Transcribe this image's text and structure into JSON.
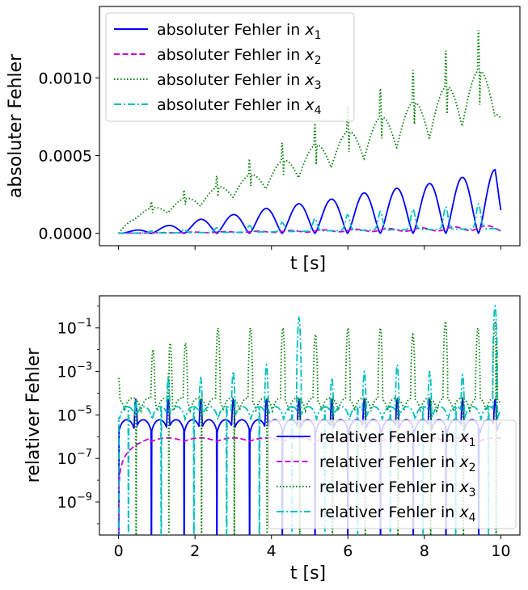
{
  "chart_data": [
    {
      "type": "line",
      "title": "",
      "xlabel": "t [s]",
      "ylabel": "absoluter Fehler",
      "xlim": [
        -0.5,
        10.5
      ],
      "ylim": [
        -8e-05,
        0.00146
      ],
      "yscale": "linear",
      "xtick_values": [
        0,
        2,
        4,
        6,
        8,
        10
      ],
      "show_xtick_labels": false,
      "yticks": [
        {
          "value": 0.0,
          "label": "0.0000"
        },
        {
          "value": 0.0005,
          "label": "0.0005"
        },
        {
          "value": 0.001,
          "label": "0.0010"
        }
      ],
      "grid": false,
      "legend_position": "upper-left",
      "series": [
        {
          "name": "absoluter Fehler in x1",
          "label_base": "absoluter Fehler in ",
          "sub": "1",
          "color": "#0000ff",
          "dash": "solid",
          "peaks_t": [
            0.0,
            0.45,
            1.32,
            2.15,
            3.0,
            3.87,
            4.72,
            5.58,
            6.43,
            7.29,
            8.14,
            9.0,
            9.85,
            10.0
          ],
          "peaks_v": [
            0.0,
            2e-05,
            5e-05,
            9e-05,
            0.00012,
            0.00016,
            0.00019,
            0.00022,
            0.00026,
            0.00029,
            0.00032,
            0.00036,
            0.00041,
            0.00019
          ]
        },
        {
          "name": "absoluter Fehler in x2",
          "label_base": "absoluter Fehler in ",
          "sub": "2",
          "color": "#cc00cc",
          "dash": "dashed",
          "peaks_t": [
            0.0,
            2.0,
            4.0,
            6.0,
            8.0,
            9.85,
            10.0
          ],
          "peaks_v": [
            0.0,
            8e-06,
            1.5e-05,
            2.5e-05,
            3.5e-05,
            5e-05,
            4e-05
          ]
        },
        {
          "name": "absoluter Fehler in x3",
          "label_base": "absoluter Fehler in ",
          "sub": "3",
          "color": "#008000",
          "dash": "dotted",
          "peaks_t": [
            0.0,
            0.45,
            1.3,
            2.15,
            3.0,
            3.87,
            4.72,
            5.58,
            6.43,
            7.29,
            8.14,
            9.0,
            9.85,
            10.0
          ],
          "peaks_v": [
            0.0,
            0.00017,
            0.00024,
            0.00032,
            0.00042,
            0.00052,
            0.00065,
            0.00077,
            0.00087,
            0.001,
            0.00111,
            0.00125,
            0.00137,
            0.00107
          ]
        },
        {
          "name": "absoluter Fehler in x4",
          "label_base": "absoluter Fehler in ",
          "sub": "4",
          "color": "#00bfbf",
          "dash": "dashdot",
          "peaks_t": [
            0.0,
            0.45,
            1.3,
            2.15,
            3.0,
            3.87,
            4.72,
            5.58,
            6.43,
            7.29,
            8.14,
            9.0,
            9.85,
            10.0
          ],
          "peaks_v": [
            0.0,
            1e-05,
            2e-05,
            3e-05,
            4e-05,
            6e-05,
            8e-05,
            0.00011,
            0.00013,
            0.00015,
            0.00016,
            0.00018,
            0.0002,
            8e-05
          ]
        }
      ]
    },
    {
      "type": "line",
      "title": "",
      "xlabel": "t [s]",
      "ylabel": "relativer Fehler",
      "xlim": [
        -0.5,
        10.5
      ],
      "ylim": [
        3e-11,
        3.0
      ],
      "yscale": "log",
      "xtick_values": [
        0,
        2,
        4,
        6,
        8,
        10
      ],
      "xtick_labels": [
        "0",
        "2",
        "4",
        "6",
        "8",
        "10"
      ],
      "show_xtick_labels": true,
      "ytick_exponents": [
        -9,
        -7,
        -5,
        -3,
        -1
      ],
      "grid": false,
      "legend_position": "lower-right",
      "series": [
        {
          "name": "relativer Fehler in x1",
          "label_base": "relativer Fehler in ",
          "sub": "1",
          "color": "#0000ff",
          "dash": "solid",
          "level": 5e-06,
          "spikes_t": [
            0.45,
            1.3,
            2.15,
            3.0,
            3.87,
            4.72,
            5.58,
            6.43,
            7.29,
            8.14,
            9.0,
            9.85
          ]
        },
        {
          "name": "relativer Fehler in x2",
          "label_base": "relativer Fehler in ",
          "sub": "2",
          "color": "#cc00cc",
          "dash": "dashed",
          "start": 0.0,
          "plateau": 8e-07,
          "plateau_t": 0.8,
          "end": 10.0
        },
        {
          "name": "relativer Fehler in x3",
          "label_base": "relativer Fehler in ",
          "sub": "3",
          "color": "#008000",
          "dash": "dotted",
          "level": 5e-05,
          "spikes_t": [
            0.0,
            0.9,
            1.35,
            1.75,
            2.6,
            3.45,
            4.3,
            5.15,
            6.0,
            6.85,
            7.7,
            8.55,
            9.4,
            9.85
          ],
          "spikes_v": [
            0.0005,
            0.01,
            0.02,
            0.02,
            0.1,
            0.1,
            0.1,
            0.05,
            0.1,
            0.1,
            0.05,
            0.2,
            0.1,
            0.2
          ]
        },
        {
          "name": "relativer Fehler in x4",
          "label_base": "relativer Fehler in ",
          "sub": "4",
          "color": "#00bfbf",
          "dash": "dashdot",
          "level": 2e-05,
          "spikes_t": [
            0.45,
            1.3,
            2.15,
            3.0,
            3.87,
            4.72,
            5.58,
            6.43,
            7.29,
            8.14,
            9.0,
            9.85
          ],
          "spikes_v": [
            5e-05,
            0.0005,
            0.0005,
            0.001,
            0.002,
            0.3,
            0.0005,
            0.001,
            0.002,
            0.001,
            0.0007,
            1.0
          ]
        }
      ]
    }
  ]
}
